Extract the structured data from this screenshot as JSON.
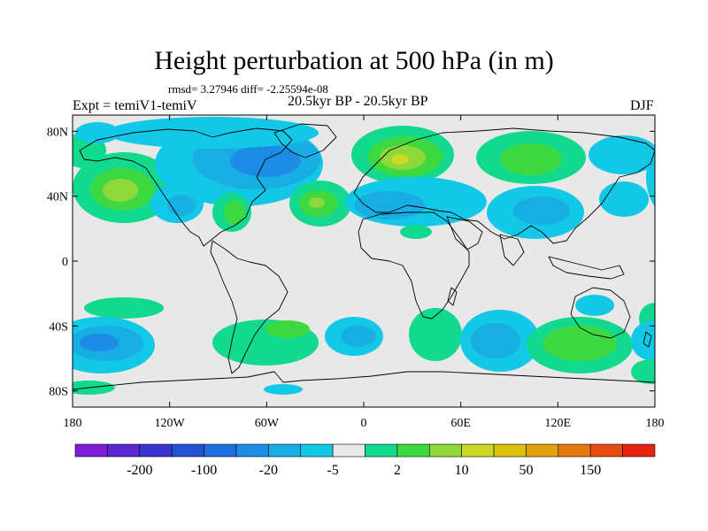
{
  "title": "Height perturbation at 500 hPa (in m)",
  "stats_line": "rmsd= 3.27946 diff= -2.25594e-08",
  "experiment_label": "Expt = temiV1-temiV",
  "period_label": "20.5kyr BP - 20.5kyr BP",
  "season_label": "DJF",
  "map": {
    "lat_ticks": [
      {
        "label": "80N",
        "lat": 80
      },
      {
        "label": "40N",
        "lat": 40
      },
      {
        "label": "0",
        "lat": 0
      },
      {
        "label": "40S",
        "lat": -40
      },
      {
        "label": "80S",
        "lat": -80
      }
    ],
    "lon_ticks": [
      {
        "label": "180",
        "lon": -180
      },
      {
        "label": "120W",
        "lon": -120
      },
      {
        "label": "60W",
        "lon": -60
      },
      {
        "label": "0",
        "lon": 0
      },
      {
        "label": "60E",
        "lon": 60
      },
      {
        "label": "120E",
        "lon": 120
      },
      {
        "label": "180",
        "lon": 180
      }
    ],
    "lon_range": [
      -180,
      180
    ],
    "lat_range": [
      -90,
      90
    ]
  },
  "colorbar": {
    "colors": [
      "#7a1fd6",
      "#5a27d0",
      "#3b34cc",
      "#2452d6",
      "#1e6ee0",
      "#1c8ce6",
      "#18aee4",
      "#12c8e6",
      "#e8e8e8",
      "#13d98f",
      "#3ed840",
      "#8fd83a",
      "#c8d823",
      "#dcc10f",
      "#e3a00c",
      "#e6780e",
      "#e84a10",
      "#e82212"
    ],
    "labels": [
      "-200",
      "-100",
      "-20",
      "-5",
      "2",
      "10",
      "50",
      "150"
    ],
    "label_after_box": [
      1,
      3,
      5,
      7,
      9,
      11,
      13,
      15
    ]
  }
}
